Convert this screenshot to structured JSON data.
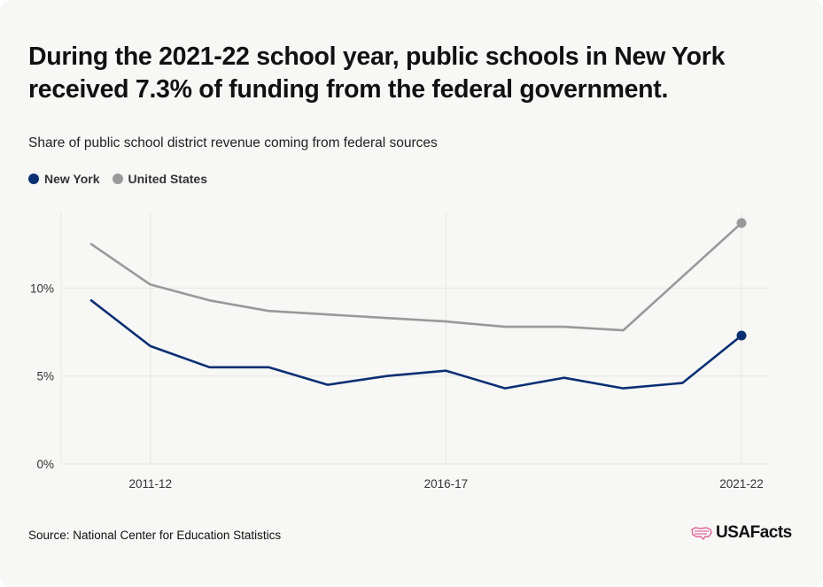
{
  "title": "During the 2021-22 school year, public schools in New York received 7.3% of funding from the federal government.",
  "subtitle": "Share of public school district revenue coming from federal sources",
  "source": "Source: National Center for Education Statistics",
  "logo_text": "USAFacts",
  "logo_icon": "us-map-flag-icon",
  "colors": {
    "new_york": "#0b2f73",
    "united_states": "#999999",
    "grid": "#e6e6e3",
    "card_background": "#f7f7f5",
    "logo_accent": "#e0669a"
  },
  "chart_data": {
    "type": "line",
    "x": [
      "2010-11",
      "2011-12",
      "2012-13",
      "2013-14",
      "2014-15",
      "2015-16",
      "2016-17",
      "2017-18",
      "2018-19",
      "2019-20",
      "2020-21",
      "2021-22"
    ],
    "x_tick_labels": [
      "2011-12",
      "2016-17",
      "2021-22"
    ],
    "y_tick_labels": [
      "0%",
      "5%",
      "10%"
    ],
    "y_ticks": [
      0,
      5,
      10
    ],
    "ylim": [
      0,
      14.3
    ],
    "grid": true,
    "legend_position": "top-left",
    "series": [
      {
        "name": "New York",
        "color": "#0b2f73",
        "values": [
          9.3,
          6.7,
          5.5,
          5.5,
          4.5,
          5.0,
          5.3,
          4.3,
          4.9,
          4.3,
          4.6,
          7.3
        ]
      },
      {
        "name": "United States",
        "color": "#999999",
        "values": [
          12.5,
          10.2,
          9.3,
          8.7,
          8.5,
          8.3,
          8.1,
          7.8,
          7.8,
          7.6,
          null,
          13.7
        ]
      }
    ]
  }
}
